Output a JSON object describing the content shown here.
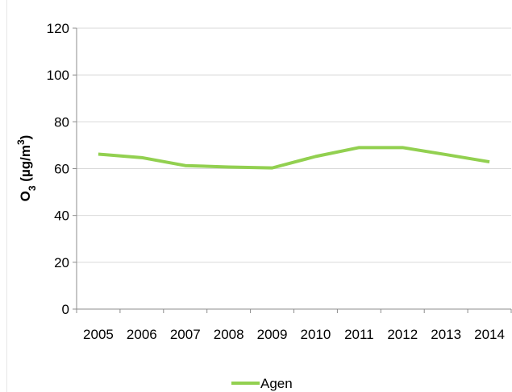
{
  "chart_data": {
    "type": "line",
    "categories": [
      "2005",
      "2006",
      "2007",
      "2008",
      "2009",
      "2010",
      "2011",
      "2012",
      "2013",
      "2014"
    ],
    "series": [
      {
        "name": "Agen",
        "color": "#92d050",
        "values": [
          66.2,
          64.7,
          61.3,
          60.7,
          60.3,
          65.2,
          69.0,
          69.0,
          66.0,
          62.9
        ]
      }
    ],
    "title": "",
    "xlabel": "",
    "ylabel": "O3 (µg/m³)",
    "ylim": [
      0,
      120
    ],
    "yticks": [
      "0",
      "20",
      "40",
      "60",
      "80",
      "100",
      "120"
    ],
    "grid": "horizontal",
    "legend": "bottom-center",
    "colors": {
      "grid": "#d9d9d9",
      "axis": "#8c8c8c"
    }
  }
}
